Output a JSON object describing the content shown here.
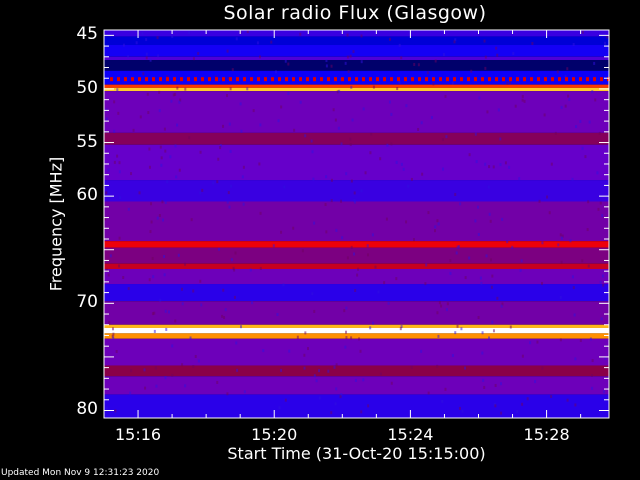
{
  "chart_data": {
    "type": "heatmap",
    "title": "Solar radio Flux (Glasgow)",
    "xlabel": "Start Time (31-Oct-20 15:15:00)",
    "ylabel": "Frequency [MHz]",
    "x_range": [
      "15:15:00",
      "15:29:50"
    ],
    "ylim": [
      44.5,
      80.7
    ],
    "y_inverted": true,
    "x_ticks": [
      {
        "label": "15:16",
        "minutes": 1
      },
      {
        "label": "15:20",
        "minutes": 5
      },
      {
        "label": "15:24",
        "minutes": 9
      },
      {
        "label": "15:28",
        "minutes": 13
      }
    ],
    "y_ticks": [
      45,
      50,
      55,
      60,
      70,
      80
    ],
    "colormap": [
      "#000000",
      "#0000ff",
      "#6a00c8",
      "#8c0040",
      "#ff0000",
      "#ffa000",
      "#ffff60",
      "#ffffff"
    ],
    "bands_mhz_intensity": [
      {
        "from": 44.5,
        "to": 45.1,
        "intensity": 0.22
      },
      {
        "from": 45.1,
        "to": 45.9,
        "intensity": 0.12
      },
      {
        "from": 45.9,
        "to": 47.0,
        "intensity": 0.17
      },
      {
        "from": 47.0,
        "to": 47.3,
        "intensity": 0.25
      },
      {
        "from": 47.3,
        "to": 48.3,
        "intensity": 0.06
      },
      {
        "from": 48.3,
        "to": 49.6,
        "intensity": 0.16
      },
      {
        "from": 49.6,
        "to": 49.9,
        "intensity": 0.62
      },
      {
        "from": 49.9,
        "to": 50.2,
        "intensity": 0.78
      },
      {
        "from": 50.2,
        "to": 54.1,
        "intensity": 0.3
      },
      {
        "from": 54.1,
        "to": 55.2,
        "intensity": 0.4
      },
      {
        "from": 55.2,
        "to": 58.5,
        "intensity": 0.28
      },
      {
        "from": 58.5,
        "to": 60.5,
        "intensity": 0.22
      },
      {
        "from": 60.5,
        "to": 64.2,
        "intensity": 0.32
      },
      {
        "from": 64.2,
        "to": 64.8,
        "intensity": 0.55
      },
      {
        "from": 64.8,
        "to": 66.3,
        "intensity": 0.36
      },
      {
        "from": 66.3,
        "to": 66.8,
        "intensity": 0.5
      },
      {
        "from": 66.8,
        "to": 68.2,
        "intensity": 0.3
      },
      {
        "from": 68.2,
        "to": 69.8,
        "intensity": 0.2
      },
      {
        "from": 69.8,
        "to": 72.0,
        "intensity": 0.32
      },
      {
        "from": 72.0,
        "to": 72.3,
        "intensity": 0.75
      },
      {
        "from": 72.3,
        "to": 72.8,
        "intensity": 1.0
      },
      {
        "from": 72.8,
        "to": 73.3,
        "intensity": 0.7
      },
      {
        "from": 73.3,
        "to": 75.8,
        "intensity": 0.3
      },
      {
        "from": 75.8,
        "to": 76.8,
        "intensity": 0.42
      },
      {
        "from": 76.8,
        "to": 78.5,
        "intensity": 0.3
      },
      {
        "from": 78.5,
        "to": 80.7,
        "intensity": 0.2
      }
    ]
  },
  "footer": {
    "updated": "Updated Mon Nov  9 12:31:23 2020"
  }
}
